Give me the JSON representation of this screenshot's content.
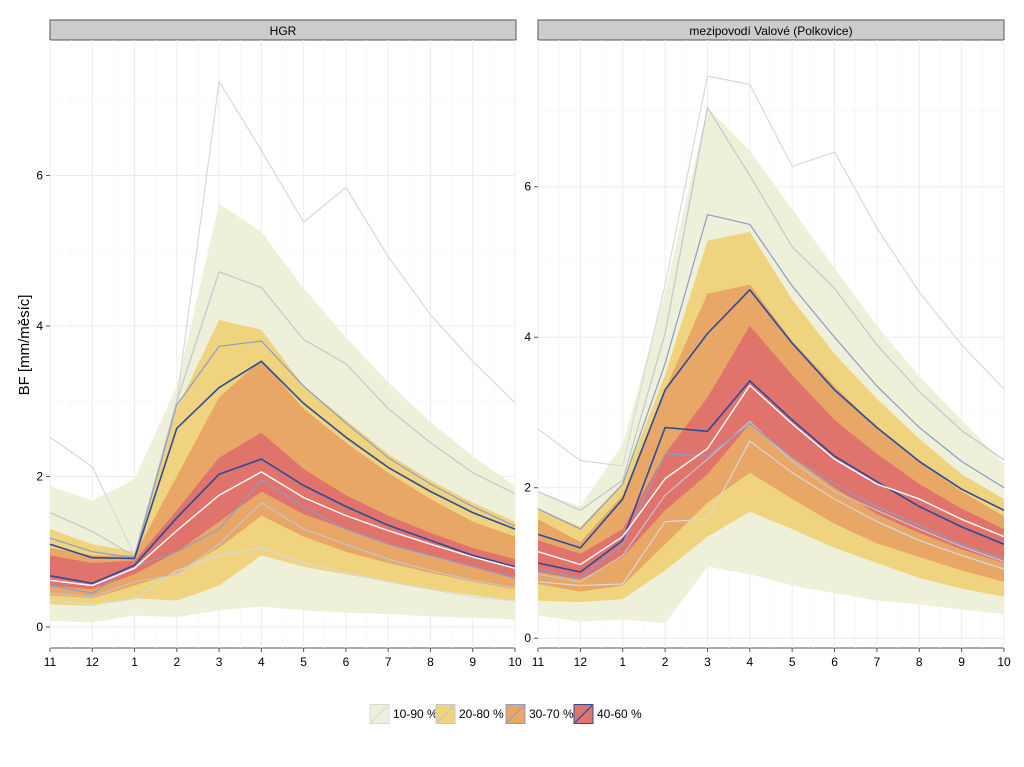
{
  "chart_data": {
    "type": "area",
    "ylabel": "BF [mm/měsíc]",
    "xlabel": "",
    "x_categories": [
      "11",
      "12",
      "1",
      "2",
      "3",
      "4",
      "5",
      "6",
      "7",
      "8",
      "9",
      "10"
    ],
    "y_ticks": [
      "0",
      "2",
      "4",
      "6"
    ],
    "legend": [
      {
        "label": "10-90 %",
        "fill": "#eef0d9",
        "line": "#d9d9d9"
      },
      {
        "label": "20-80 %",
        "fill": "#f0d37e",
        "line": "#c4c6cf"
      },
      {
        "label": "30-70 %",
        "fill": "#e8a766",
        "line": "#8e9cc8"
      },
      {
        "label": "40-60 %",
        "fill": "#e0736b",
        "line": "#2c4b9c"
      }
    ],
    "facets": [
      {
        "title": "HGR",
        "ylim": [
          -0.28,
          7.8
        ],
        "bands": [
          {
            "name": "10-90 %",
            "lower": [
              0.08,
              0.06,
              0.15,
              0.13,
              0.22,
              0.27,
              0.22,
              0.19,
              0.17,
              0.14,
              0.12,
              0.1
            ],
            "upper": [
              1.87,
              1.68,
              1.96,
              3.2,
              5.62,
              5.25,
              4.5,
              3.85,
              3.25,
              2.72,
              2.27,
              1.87
            ]
          },
          {
            "name": "20-80 %",
            "lower": [
              0.3,
              0.28,
              0.38,
              0.35,
              0.55,
              0.95,
              0.8,
              0.7,
              0.6,
              0.5,
              0.42,
              0.35
            ],
            "upper": [
              1.3,
              1.1,
              1.0,
              2.9,
              4.08,
              3.95,
              3.2,
              2.75,
              2.3,
              1.95,
              1.65,
              1.4
            ]
          },
          {
            "name": "30-70 %",
            "lower": [
              0.42,
              0.38,
              0.55,
              0.72,
              1.05,
              1.48,
              1.2,
              1.0,
              0.85,
              0.72,
              0.6,
              0.5
            ],
            "upper": [
              1.05,
              0.95,
              0.95,
              2.0,
              3.05,
              3.55,
              2.9,
              2.45,
              2.05,
              1.7,
              1.4,
              1.2
            ]
          },
          {
            "name": "40-60 %",
            "lower": [
              0.55,
              0.5,
              0.7,
              1.0,
              1.4,
              1.8,
              1.5,
              1.3,
              1.1,
              0.95,
              0.8,
              0.65
            ],
            "upper": [
              0.95,
              0.85,
              0.88,
              1.55,
              2.25,
              2.58,
              2.1,
              1.75,
              1.48,
              1.25,
              1.05,
              0.9
            ]
          }
        ],
        "lines": [
          {
            "name": "q10",
            "tier": "10-90 %",
            "values": [
              0.35,
              0.3,
              0.37,
              0.75,
              0.95,
              1.05,
              0.85,
              0.72,
              0.6,
              0.5,
              0.4,
              0.35
            ]
          },
          {
            "name": "q90",
            "tier": "10-90 %",
            "values": [
              2.52,
              2.13,
              0.95,
              3.0,
              7.25,
              6.33,
              5.38,
              5.84,
              4.92,
              4.15,
              3.53,
              2.98
            ]
          },
          {
            "name": "q20",
            "tier": "20-80 %",
            "values": [
              0.45,
              0.4,
              0.6,
              0.7,
              1.1,
              1.65,
              1.3,
              1.1,
              0.9,
              0.75,
              0.62,
              0.52
            ]
          },
          {
            "name": "q80",
            "tier": "20-80 %",
            "values": [
              1.52,
              1.27,
              0.94,
              3.0,
              4.72,
              4.51,
              3.82,
              3.5,
              2.9,
              2.45,
              2.05,
              1.77
            ]
          },
          {
            "name": "q30",
            "tier": "30-70 %",
            "values": [
              0.55,
              0.45,
              0.8,
              1.0,
              1.3,
              1.95,
              1.6,
              1.3,
              1.1,
              0.95,
              0.8,
              0.65
            ]
          },
          {
            "name": "q70",
            "tier": "30-70 %",
            "values": [
              1.18,
              1.0,
              0.92,
              2.95,
              3.73,
              3.8,
              3.2,
              2.71,
              2.25,
              1.9,
              1.6,
              1.34
            ]
          },
          {
            "name": "q40",
            "tier": "40-60 %",
            "values": [
              0.68,
              0.58,
              0.82,
              1.45,
              2.03,
              2.23,
              1.88,
              1.6,
              1.35,
              1.15,
              0.95,
              0.8
            ]
          },
          {
            "name": "q60",
            "tier": "40-60 %",
            "values": [
              1.1,
              0.92,
              0.91,
              2.64,
              3.18,
              3.53,
              2.97,
              2.52,
              2.12,
              1.8,
              1.52,
              1.3
            ]
          },
          {
            "name": "median",
            "tier": "median",
            "values": [
              0.62,
              0.55,
              0.78,
              1.28,
              1.75,
              2.06,
              1.72,
              1.48,
              1.28,
              1.1,
              0.93,
              0.78
            ]
          }
        ]
      },
      {
        "title": "mezipovodí Valové (Polkovice)",
        "ylim": [
          -0.13,
          7.95
        ],
        "bands": [
          {
            "name": "10-90 %",
            "lower": [
              0.3,
              0.22,
              0.25,
              0.2,
              0.95,
              0.85,
              0.7,
              0.6,
              0.5,
              0.45,
              0.38,
              0.32
            ],
            "upper": [
              1.95,
              1.75,
              2.58,
              4.6,
              7.05,
              6.48,
              5.7,
              4.92,
              4.15,
              3.48,
              2.9,
              2.32
            ]
          },
          {
            "name": "20-80 %",
            "lower": [
              0.5,
              0.48,
              0.52,
              0.9,
              1.35,
              1.68,
              1.45,
              1.2,
              1.0,
              0.8,
              0.66,
              0.55
            ],
            "upper": [
              1.72,
              1.48,
              2.06,
              3.5,
              5.28,
              5.4,
              4.5,
              3.78,
              3.18,
              2.65,
              2.18,
              1.85
            ]
          },
          {
            "name": "30-70 %",
            "lower": [
              0.72,
              0.62,
              0.7,
              1.25,
              1.8,
              2.2,
              1.85,
              1.52,
              1.26,
              1.08,
              0.9,
              0.75
            ],
            "upper": [
              1.58,
              1.28,
              1.9,
              3.3,
              4.58,
              4.7,
              3.95,
              3.35,
              2.8,
              2.35,
              1.95,
              1.62
            ]
          },
          {
            "name": "40-60 %",
            "lower": [
              0.88,
              0.78,
              1.08,
              1.7,
              2.18,
              2.85,
              2.4,
              2.0,
              1.65,
              1.4,
              1.18,
              1.0
            ],
            "upper": [
              1.3,
              1.12,
              1.45,
              2.45,
              3.2,
              4.15,
              3.5,
              2.9,
              2.45,
              2.05,
              1.72,
              1.45
            ]
          }
        ],
        "lines": [
          {
            "name": "q10",
            "tier": "10-90 %",
            "values": [
              0.75,
              0.7,
              0.72,
              1.55,
              1.58,
              2.62,
              2.2,
              1.85,
              1.55,
              1.3,
              1.1,
              0.92
            ]
          },
          {
            "name": "q90",
            "tier": "10-90 %",
            "values": [
              2.78,
              2.36,
              2.29,
              4.7,
              7.47,
              7.36,
              6.27,
              6.46,
              5.45,
              4.6,
              3.9,
              3.31
            ]
          },
          {
            "name": "q20",
            "tier": "20-80 %",
            "values": [
              0.85,
              0.75,
              1.1,
              1.9,
              2.38,
              2.88,
              2.35,
              1.95,
              1.7,
              1.45,
              1.22,
              1.02
            ]
          },
          {
            "name": "q80",
            "tier": "20-80 %",
            "values": [
              1.95,
              1.7,
              2.1,
              4.05,
              7.05,
              6.15,
              5.2,
              4.65,
              3.9,
              3.28,
              2.76,
              2.37
            ]
          },
          {
            "name": "q30",
            "tier": "30-70 %",
            "values": [
              0.92,
              0.8,
              1.25,
              2.45,
              2.42,
              2.85,
              2.4,
              2.05,
              1.75,
              1.5,
              1.25,
              1.05
            ]
          },
          {
            "name": "q70",
            "tier": "30-70 %",
            "values": [
              1.72,
              1.45,
              2.05,
              3.65,
              5.63,
              5.5,
              4.68,
              4.0,
              3.35,
              2.8,
              2.35,
              2.0
            ]
          },
          {
            "name": "q40",
            "tier": "40-60 %",
            "values": [
              1.0,
              0.88,
              1.3,
              2.8,
              2.75,
              3.42,
              2.9,
              2.42,
              2.08,
              1.75,
              1.48,
              1.25
            ]
          },
          {
            "name": "q60",
            "tier": "40-60 %",
            "values": [
              1.38,
              1.2,
              1.85,
              3.3,
              4.05,
              4.63,
              3.92,
              3.3,
              2.8,
              2.35,
              1.98,
              1.7
            ]
          },
          {
            "name": "median",
            "tier": "median",
            "values": [
              1.15,
              0.98,
              1.35,
              2.12,
              2.52,
              3.36,
              2.85,
              2.38,
              2.05,
              1.85,
              1.58,
              1.35
            ]
          }
        ]
      }
    ]
  }
}
